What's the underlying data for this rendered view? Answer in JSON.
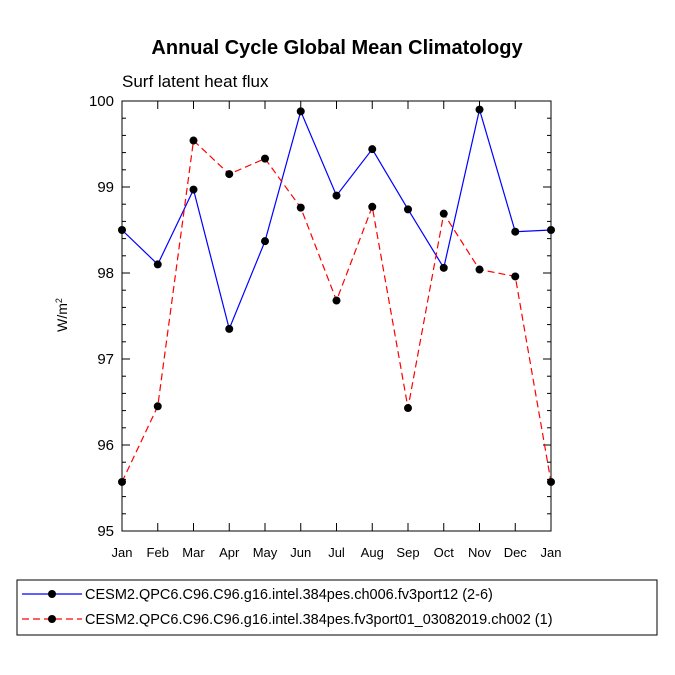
{
  "chart_data": {
    "type": "line",
    "title": "Annual Cycle Global Mean Climatology",
    "subtitle": "Surf latent heat flux",
    "ylabel": "W/m",
    "ylabel_superscript": "2",
    "xlabel": "",
    "categories": [
      "Jan",
      "Feb",
      "Mar",
      "Apr",
      "May",
      "Jun",
      "Jul",
      "Aug",
      "Sep",
      "Oct",
      "Nov",
      "Dec",
      "Jan"
    ],
    "ylim": [
      95,
      100
    ],
    "yticks": [
      95,
      96,
      97,
      98,
      99,
      100
    ],
    "legend_position": "bottom",
    "series": [
      {
        "name": "CESM2.QPC6.C96.C96.g16.intel.384pes.ch006.fv3port12 (2-6)",
        "color": "#0000ff",
        "style": "solid",
        "values": [
          98.5,
          98.1,
          98.97,
          97.35,
          98.37,
          99.88,
          98.9,
          99.44,
          98.74,
          98.06,
          99.9,
          98.48,
          98.5
        ]
      },
      {
        "name": "CESM2.QPC6.C96.C96.g16.intel.384pes.fv3port01_03082019.ch002 (1)",
        "color": "#ff0000",
        "style": "dashed",
        "values": [
          95.57,
          96.45,
          99.54,
          99.15,
          99.33,
          98.76,
          97.68,
          98.77,
          96.43,
          98.69,
          98.04,
          97.96,
          95.57
        ]
      }
    ]
  }
}
